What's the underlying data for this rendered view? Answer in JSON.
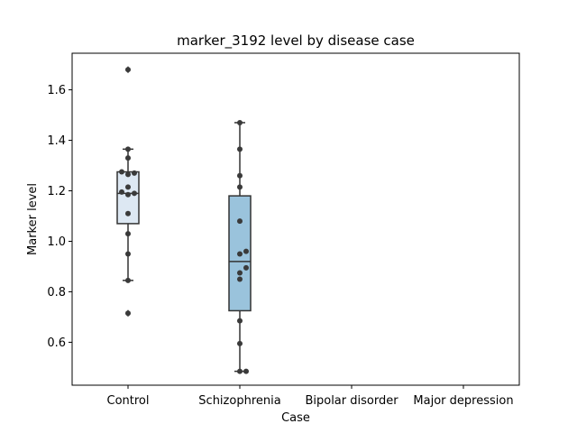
{
  "chart_data": {
    "type": "box",
    "title": "marker_3192 level by disease case",
    "xlabel": "Case",
    "ylabel": "Marker level",
    "categories": [
      "Control",
      "Schizophrenia",
      "Bipolar disorder",
      "Major depression"
    ],
    "ylim": [
      0.43,
      1.745
    ],
    "yticks": [
      0.6,
      0.8,
      1.0,
      1.2,
      1.4,
      1.6
    ],
    "ytick_labels": [
      "0.6",
      "0.8",
      "1.0",
      "1.2",
      "1.4",
      "1.6"
    ],
    "colors": {
      "Control": "#dde8f3",
      "Schizophrenia": "#9ac3dc",
      "box_edge": "#333333",
      "points": "#3a3a3a"
    },
    "boxes": [
      {
        "category": "Control",
        "q1": 1.07,
        "median": 1.19,
        "q3": 1.275,
        "whisker_low": 0.845,
        "whisker_high": 1.365,
        "outliers": [
          0.715,
          1.68
        ],
        "points": [
          0.715,
          0.845,
          0.95,
          1.03,
          1.11,
          1.185,
          1.19,
          1.195,
          1.215,
          1.265,
          1.27,
          1.275,
          1.33,
          1.365,
          1.68
        ]
      },
      {
        "category": "Schizophrenia",
        "q1": 0.725,
        "median": 0.92,
        "q3": 1.18,
        "whisker_low": 0.485,
        "whisker_high": 1.47,
        "outliers": [],
        "points": [
          0.485,
          0.485,
          0.595,
          0.685,
          0.85,
          0.875,
          0.895,
          0.95,
          0.96,
          1.08,
          1.215,
          1.26,
          1.365,
          1.47
        ]
      }
    ]
  }
}
